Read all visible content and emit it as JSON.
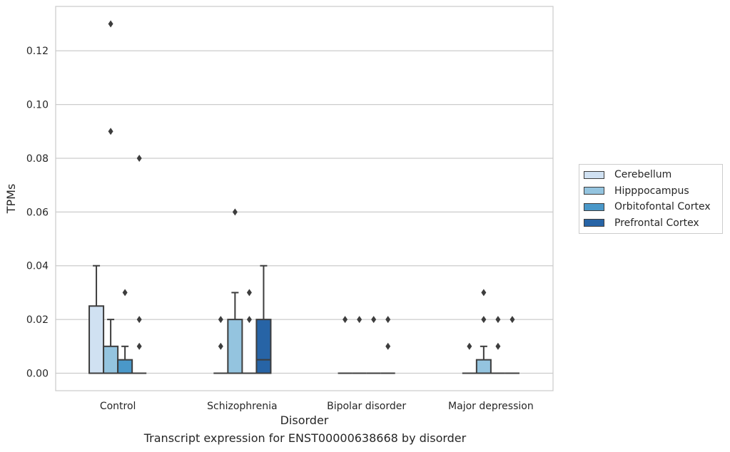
{
  "chart_data": {
    "type": "box",
    "caption": "Transcript expression for ENST00000638668 by disorder",
    "xlabel": "Disorder",
    "ylabel": "TPMs",
    "ylim": [
      -0.0065,
      0.1365
    ],
    "yticks": [
      0.0,
      0.02,
      0.04,
      0.06,
      0.08,
      0.1,
      0.12
    ],
    "ytick_labels": [
      "0.00",
      "0.02",
      "0.04",
      "0.06",
      "0.08",
      "0.10",
      "0.12"
    ],
    "grid": "horizontal",
    "legend_position": "outside-right",
    "categories": [
      "Control",
      "Schizophrenia",
      "Bipolar disorder",
      "Major depression"
    ],
    "series": [
      {
        "name": "Cerebellum",
        "color": "#d0e1f2",
        "boxes": [
          {
            "q1": 0.0,
            "median": 0.0,
            "q3": 0.025,
            "whisker_low": 0.0,
            "whisker_high": 0.04,
            "outliers": []
          },
          {
            "q1": 0.0,
            "median": 0.0,
            "q3": 0.0,
            "whisker_low": 0.0,
            "whisker_high": 0.0,
            "outliers": [
              0.01,
              0.02
            ]
          },
          {
            "q1": 0.0,
            "median": 0.0,
            "q3": 0.0,
            "whisker_low": 0.0,
            "whisker_high": 0.0,
            "outliers": [
              0.02
            ]
          },
          {
            "q1": 0.0,
            "median": 0.0,
            "q3": 0.0,
            "whisker_low": 0.0,
            "whisker_high": 0.0,
            "outliers": [
              0.01
            ]
          }
        ]
      },
      {
        "name": "Hipppocampus",
        "color": "#94c4df",
        "boxes": [
          {
            "q1": 0.0,
            "median": 0.0,
            "q3": 0.01,
            "whisker_low": 0.0,
            "whisker_high": 0.02,
            "outliers": [
              0.09,
              0.13
            ]
          },
          {
            "q1": 0.0,
            "median": 0.0,
            "q3": 0.02,
            "whisker_low": 0.0,
            "whisker_high": 0.03,
            "outliers": [
              0.06
            ]
          },
          {
            "q1": 0.0,
            "median": 0.0,
            "q3": 0.0,
            "whisker_low": 0.0,
            "whisker_high": 0.0,
            "outliers": [
              0.02
            ]
          },
          {
            "q1": 0.0,
            "median": 0.0,
            "q3": 0.005,
            "whisker_low": 0.0,
            "whisker_high": 0.01,
            "outliers": [
              0.02,
              0.03
            ]
          }
        ]
      },
      {
        "name": "Orbitofontal Cortex",
        "color": "#4a98c9",
        "boxes": [
          {
            "q1": 0.0,
            "median": 0.0,
            "q3": 0.005,
            "whisker_low": 0.0,
            "whisker_high": 0.01,
            "outliers": [
              0.03
            ]
          },
          {
            "q1": 0.0,
            "median": 0.0,
            "q3": 0.0,
            "whisker_low": 0.0,
            "whisker_high": 0.0,
            "outliers": [
              0.02,
              0.03
            ]
          },
          {
            "q1": 0.0,
            "median": 0.0,
            "q3": 0.0,
            "whisker_low": 0.0,
            "whisker_high": 0.0,
            "outliers": [
              0.02
            ]
          },
          {
            "q1": 0.0,
            "median": 0.0,
            "q3": 0.0,
            "whisker_low": 0.0,
            "whisker_high": 0.0,
            "outliers": [
              0.01,
              0.02
            ]
          }
        ]
      },
      {
        "name": "Prefrontal Cortex",
        "color": "#2764a6",
        "boxes": [
          {
            "q1": 0.0,
            "median": 0.0,
            "q3": 0.0,
            "whisker_low": 0.0,
            "whisker_high": 0.0,
            "outliers": [
              0.01,
              0.02,
              0.08
            ]
          },
          {
            "q1": 0.0,
            "median": 0.005,
            "q3": 0.02,
            "whisker_low": 0.0,
            "whisker_high": 0.04,
            "outliers": []
          },
          {
            "q1": 0.0,
            "median": 0.0,
            "q3": 0.0,
            "whisker_low": 0.0,
            "whisker_high": 0.0,
            "outliers": [
              0.01,
              0.02
            ]
          },
          {
            "q1": 0.0,
            "median": 0.0,
            "q3": 0.0,
            "whisker_low": 0.0,
            "whisker_high": 0.0,
            "outliers": [
              0.02
            ]
          }
        ]
      }
    ]
  }
}
